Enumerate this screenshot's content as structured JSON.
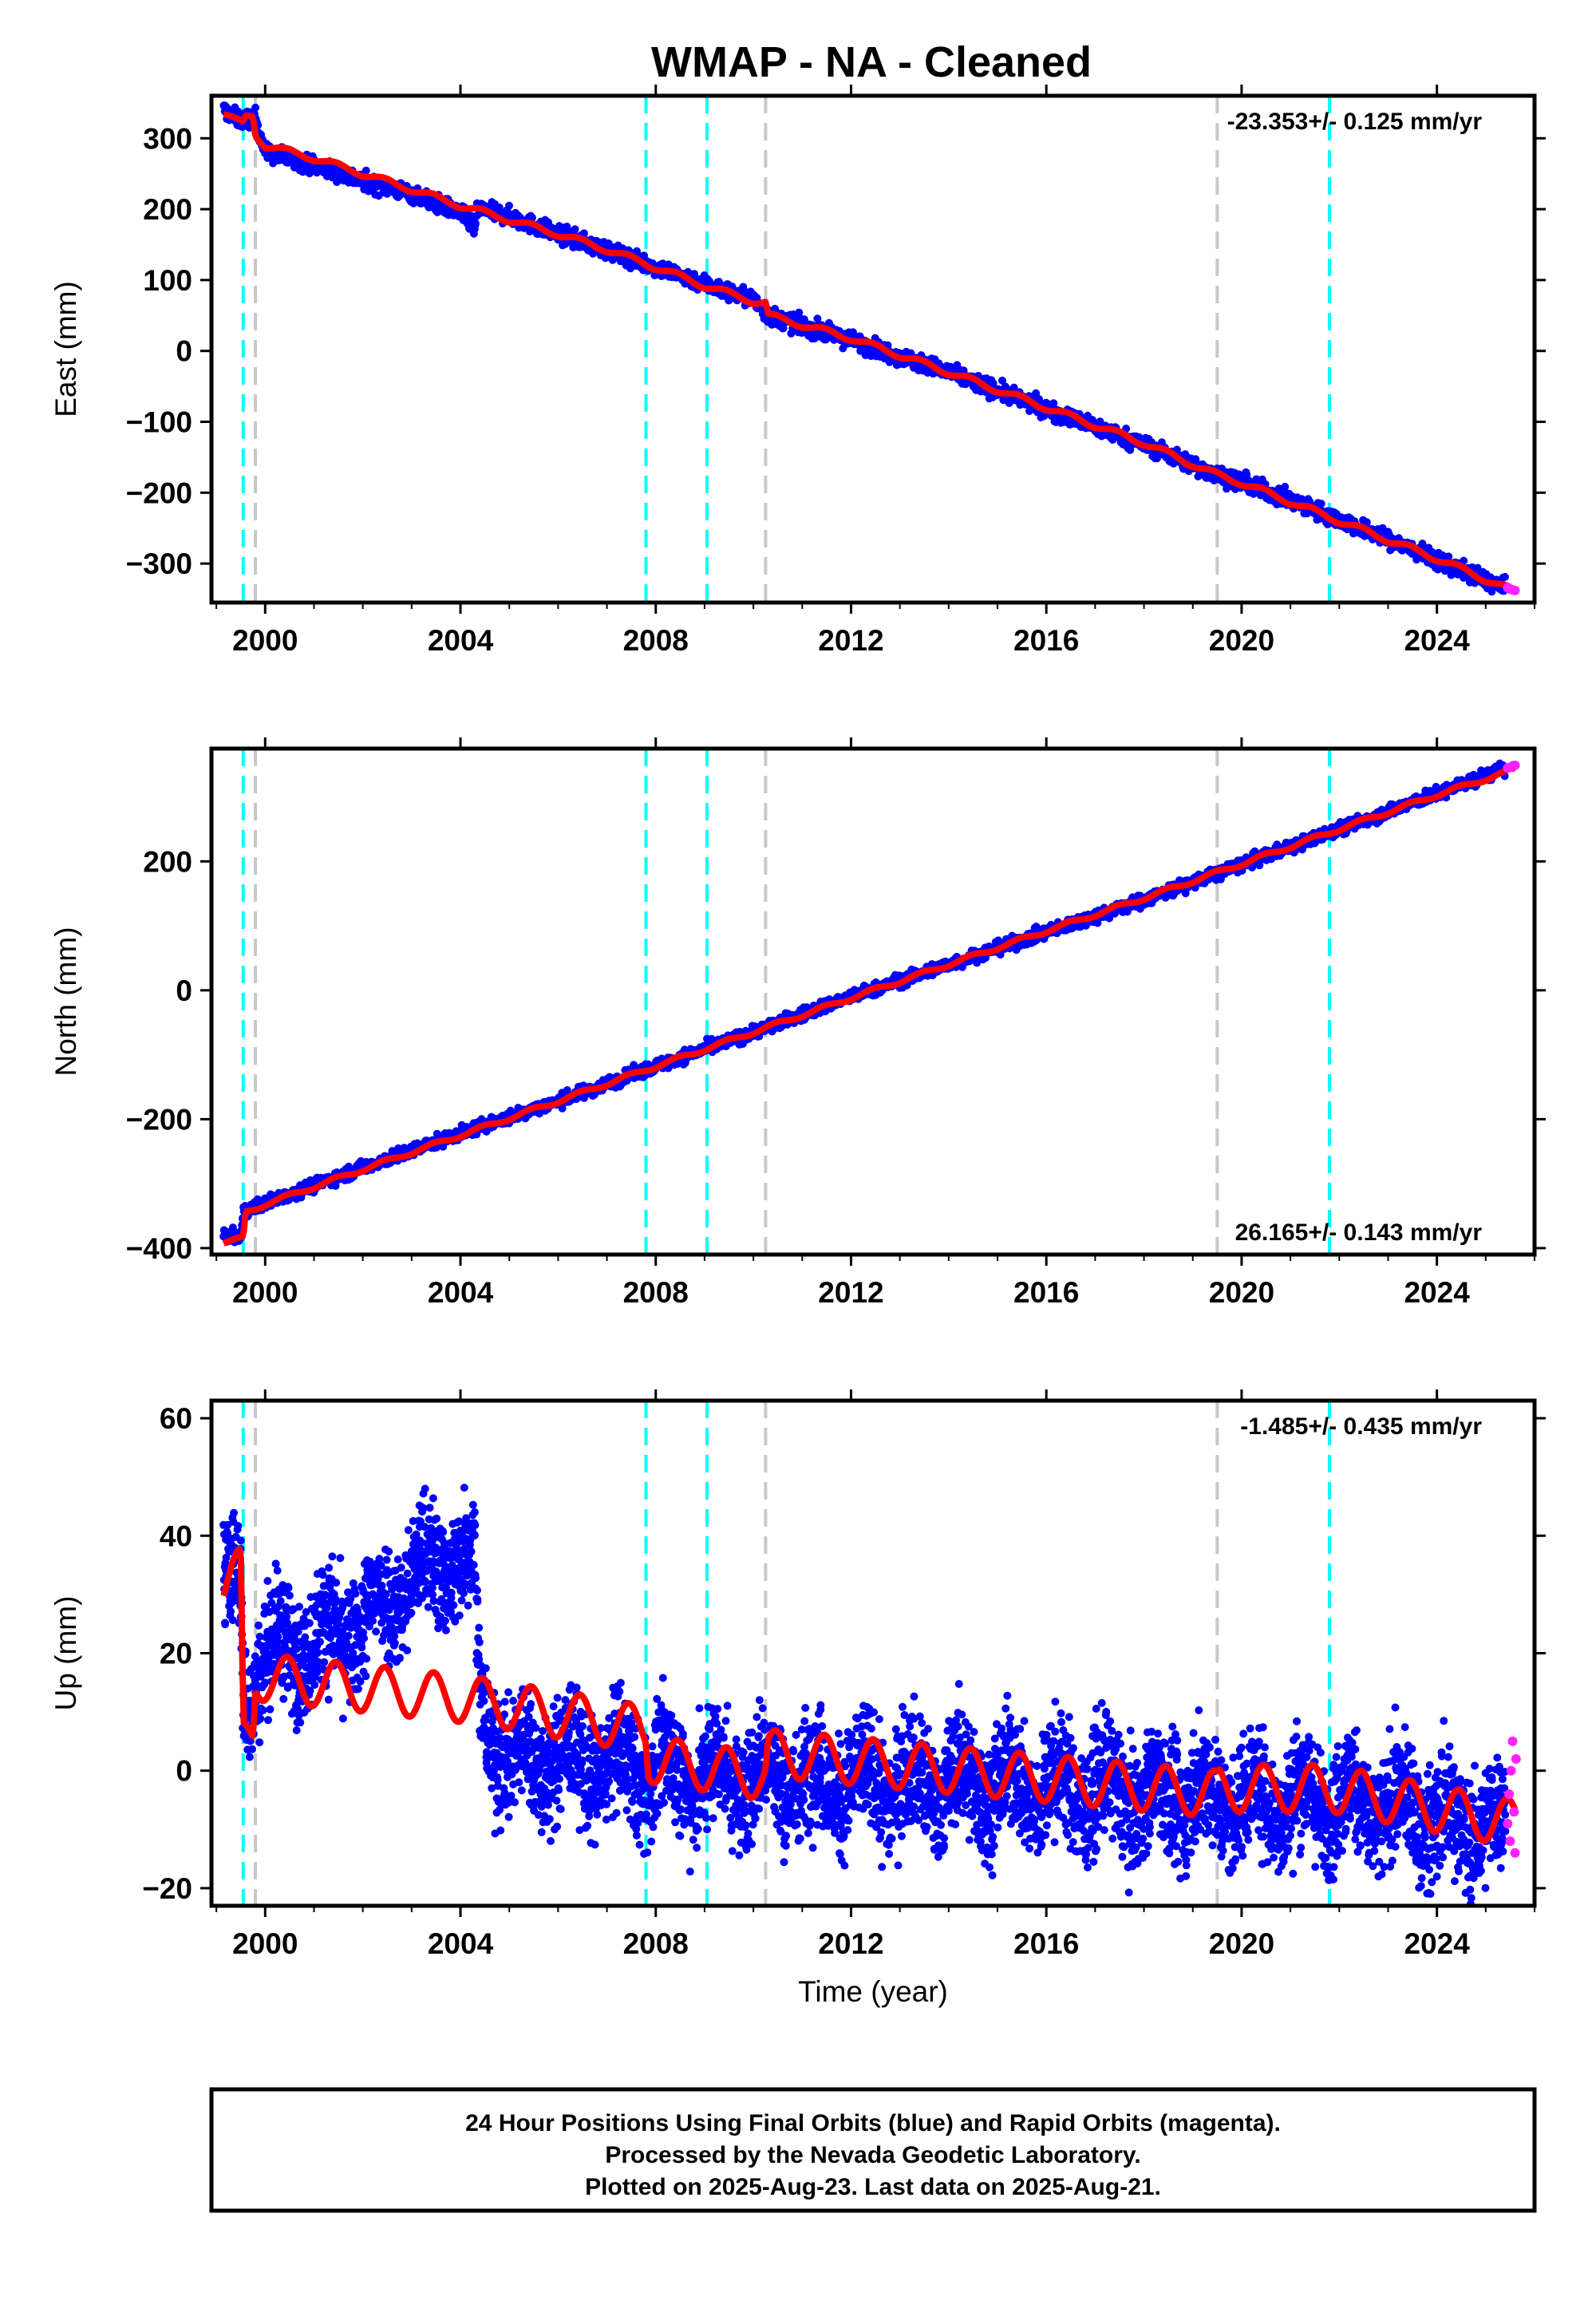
{
  "title": "WMAP  - NA - Cleaned",
  "footer": {
    "lines": [
      "24 Hour Positions Using Final Orbits (blue) and Rapid Orbits (magenta).",
      "Processed by the Nevada Geodetic Laboratory.",
      "Plotted on 2025-Aug-23. Last data on 2025-Aug-21."
    ]
  },
  "colors": {
    "final_orbits": "#0000ff",
    "rapid_orbits": "#ff22ff",
    "model_fit": "#ff0000",
    "equipment_change": "#00ffff",
    "earthquake": "#c8c8c8"
  },
  "chart_data": [
    {
      "type": "scatter",
      "ylabel": "East (mm)",
      "xlabel": "",
      "xlim": [
        1998.9,
        2026.0
      ],
      "ylim": [
        -355,
        360
      ],
      "xticks": [
        2000,
        2004,
        2008,
        2012,
        2016,
        2020,
        2024
      ],
      "yticks": [
        300,
        200,
        100,
        0,
        -100,
        -200,
        -300
      ],
      "ytick_labels": [
        "300",
        "200",
        "100",
        "0",
        "−100",
        "−200",
        "−300"
      ],
      "rate_text": "-23.353+/- 0.125 mm/yr",
      "rate_position": "top-right",
      "cyan_lines": [
        1999.55,
        2007.8,
        2009.05,
        2021.8
      ],
      "gray_lines": [
        1999.8,
        2010.25,
        2019.5
      ],
      "final_trend": [
        [
          1999.15,
          340
        ],
        [
          1999.5,
          325
        ],
        [
          1999.8,
          330
        ],
        [
          2000.0,
          280
        ],
        [
          2001.0,
          262
        ],
        [
          2002.0,
          240
        ],
        [
          2003.0,
          222
        ],
        [
          2004.0,
          195
        ],
        [
          2004.3,
          172
        ],
        [
          2004.35,
          200
        ],
        [
          2005.0,
          190
        ],
        [
          2006.0,
          165
        ],
        [
          2007.0,
          142
        ],
        [
          2008.0,
          118
        ],
        [
          2009.0,
          95
        ],
        [
          2010.0,
          72
        ],
        [
          2010.3,
          50
        ],
        [
          2012.0,
          15
        ],
        [
          2014.0,
          -30
        ],
        [
          2016.0,
          -82
        ],
        [
          2018.0,
          -132
        ],
        [
          2019.5,
          -175
        ],
        [
          2020.0,
          -185
        ],
        [
          2022.0,
          -238
        ],
        [
          2024.0,
          -295
        ],
        [
          2025.4,
          -335
        ]
      ],
      "final_noise": 6,
      "fit_line": [
        [
          1999.15,
          335
        ],
        [
          1999.4,
          325
        ],
        [
          1999.55,
          320
        ],
        [
          1999.6,
          330
        ],
        [
          1999.75,
          332
        ],
        [
          1999.8,
          305
        ],
        [
          2000.0,
          290
        ],
        [
          2001.0,
          272
        ],
        [
          2002.0,
          250
        ],
        [
          2003.0,
          228
        ],
        [
          2004.0,
          205
        ],
        [
          2005.0,
          185
        ],
        [
          2006.0,
          165
        ],
        [
          2007.0,
          143
        ],
        [
          2008.0,
          118
        ],
        [
          2009.0,
          92
        ],
        [
          2010.0,
          70
        ],
        [
          2010.25,
          68
        ],
        [
          2010.3,
          50
        ],
        [
          2012.0,
          18
        ],
        [
          2014.0,
          -30
        ],
        [
          2016.0,
          -80
        ],
        [
          2018.0,
          -130
        ],
        [
          2019.5,
          -175
        ],
        [
          2020.0,
          -186
        ],
        [
          2022.0,
          -240
        ],
        [
          2024.0,
          -293
        ],
        [
          2025.5,
          -337
        ]
      ],
      "fit_seasonal": 4,
      "rapid_points": [
        [
          2025.45,
          -334
        ],
        [
          2025.5,
          -336
        ],
        [
          2025.55,
          -337
        ],
        [
          2025.6,
          -338
        ]
      ]
    },
    {
      "type": "scatter",
      "ylabel": "North (mm)",
      "xlabel": "",
      "xlim": [
        1998.9,
        2026.0
      ],
      "ylim": [
        -410,
        375
      ],
      "xticks": [
        2000,
        2004,
        2008,
        2012,
        2016,
        2020,
        2024
      ],
      "yticks": [
        200,
        0,
        -200,
        -400
      ],
      "ytick_labels": [
        "200",
        "0",
        "−200",
        "−400"
      ],
      "rate_text": "26.165+/- 0.143 mm/yr",
      "rate_position": "bottom-right",
      "cyan_lines": [
        1999.55,
        2007.8,
        2009.05,
        2021.8
      ],
      "gray_lines": [
        1999.8,
        2010.25,
        2019.5
      ],
      "final_trend": [
        [
          1999.15,
          -380
        ],
        [
          1999.5,
          -385
        ],
        [
          1999.55,
          -345
        ],
        [
          2000.0,
          -330
        ],
        [
          2002.0,
          -275
        ],
        [
          2004.0,
          -222
        ],
        [
          2006.0,
          -172
        ],
        [
          2008.0,
          -118
        ],
        [
          2010.0,
          -65
        ],
        [
          2012.0,
          -10
        ],
        [
          2014.0,
          40
        ],
        [
          2016.0,
          90
        ],
        [
          2018.0,
          140
        ],
        [
          2020.0,
          195
        ],
        [
          2022.0,
          250
        ],
        [
          2024.0,
          305
        ],
        [
          2025.4,
          345
        ]
      ],
      "final_noise": 5,
      "fit_line": [
        [
          1999.15,
          -392
        ],
        [
          1999.55,
          -385
        ],
        [
          1999.6,
          -345
        ],
        [
          2000.0,
          -332
        ],
        [
          2002.0,
          -278
        ],
        [
          2004.0,
          -225
        ],
        [
          2006.0,
          -172
        ],
        [
          2008.0,
          -118
        ],
        [
          2010.0,
          -65
        ],
        [
          2012.0,
          -12
        ],
        [
          2014.0,
          40
        ],
        [
          2016.0,
          92
        ],
        [
          2018.0,
          143
        ],
        [
          2020.0,
          196
        ],
        [
          2022.0,
          250
        ],
        [
          2024.0,
          303
        ],
        [
          2025.6,
          343
        ]
      ],
      "fit_seasonal": 3,
      "rapid_points": [
        [
          2025.45,
          345
        ],
        [
          2025.5,
          346
        ],
        [
          2025.55,
          348
        ],
        [
          2025.6,
          349
        ]
      ]
    },
    {
      "type": "scatter",
      "ylabel": "Up (mm)",
      "xlabel": "Time (year)",
      "xlim": [
        1998.9,
        2026.0
      ],
      "ylim": [
        -23,
        63
      ],
      "xticks": [
        2000,
        2004,
        2008,
        2012,
        2016,
        2020,
        2024
      ],
      "yticks": [
        60,
        40,
        20,
        0,
        -20
      ],
      "ytick_labels": [
        "60",
        "40",
        "20",
        "0",
        "−20"
      ],
      "rate_text": "-1.485+/- 0.435 mm/yr",
      "rate_position": "top-right",
      "cyan_lines": [
        1999.55,
        2007.8,
        2009.05,
        2021.8
      ],
      "gray_lines": [
        1999.8,
        2010.25,
        2019.5
      ],
      "final_trend": [
        [
          1999.15,
          30
        ],
        [
          1999.5,
          33
        ],
        [
          1999.55,
          12
        ],
        [
          2000.0,
          20
        ],
        [
          2001.0,
          22
        ],
        [
          2002.0,
          25
        ],
        [
          2003.0,
          33
        ],
        [
          2004.0,
          37
        ],
        [
          2004.3,
          35
        ],
        [
          2004.4,
          10
        ],
        [
          2005.0,
          2
        ],
        [
          2006.0,
          2
        ],
        [
          2007.0,
          1
        ],
        [
          2008.0,
          0
        ],
        [
          2010.0,
          -1
        ],
        [
          2012.0,
          -2
        ],
        [
          2014.0,
          -2
        ],
        [
          2016.0,
          -3
        ],
        [
          2018.0,
          -4
        ],
        [
          2020.0,
          -5
        ],
        [
          2022.0,
          -5
        ],
        [
          2024.0,
          -8
        ],
        [
          2025.4,
          -10
        ]
      ],
      "final_noise": 5,
      "fit_line": [
        [
          1999.15,
          31
        ],
        [
          1999.5,
          34
        ],
        [
          1999.55,
          5
        ],
        [
          1999.75,
          7
        ],
        [
          1999.8,
          16
        ],
        [
          2004.3,
          12
        ],
        [
          2007.8,
          7
        ],
        [
          2007.85,
          2
        ],
        [
          2010.25,
          -1
        ],
        [
          2010.3,
          3
        ],
        [
          2019.5,
          -4
        ],
        [
          2019.55,
          -3
        ],
        [
          2021.8,
          -3
        ],
        [
          2025.6,
          -9
        ]
      ],
      "fit_seasonal": 4,
      "rapid_points": [
        [
          2025.45,
          -9
        ],
        [
          2025.48,
          -4
        ],
        [
          2025.5,
          -12
        ],
        [
          2025.52,
          0
        ],
        [
          2025.55,
          5
        ],
        [
          2025.58,
          -7
        ],
        [
          2025.6,
          -14
        ],
        [
          2025.62,
          2
        ]
      ]
    }
  ]
}
